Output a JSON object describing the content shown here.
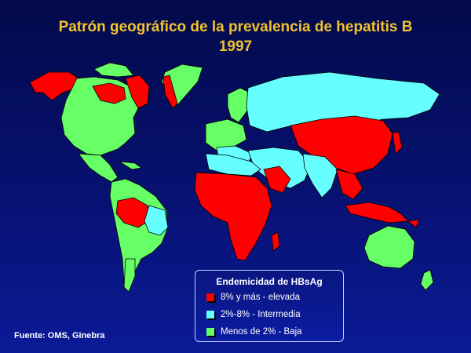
{
  "title": {
    "line1": "Patrón geográfico de la prevalencia de hepatitis B",
    "line2": "1997"
  },
  "legend": {
    "title": "Endemicidad de HBsAg",
    "items": [
      {
        "label": "8% y más - elevada",
        "color": "#ff0000"
      },
      {
        "label": "2%-8%  - Intermedia",
        "color": "#66ffff"
      },
      {
        "label": "Menos de 2% - Baja",
        "color": "#66ff66"
      }
    ]
  },
  "source": "Fuente: OMS, Ginebra",
  "colors": {
    "high": "#ff0000",
    "intermediate": "#66ffff",
    "low": "#66ff66",
    "no_data": "#ffffff"
  }
}
